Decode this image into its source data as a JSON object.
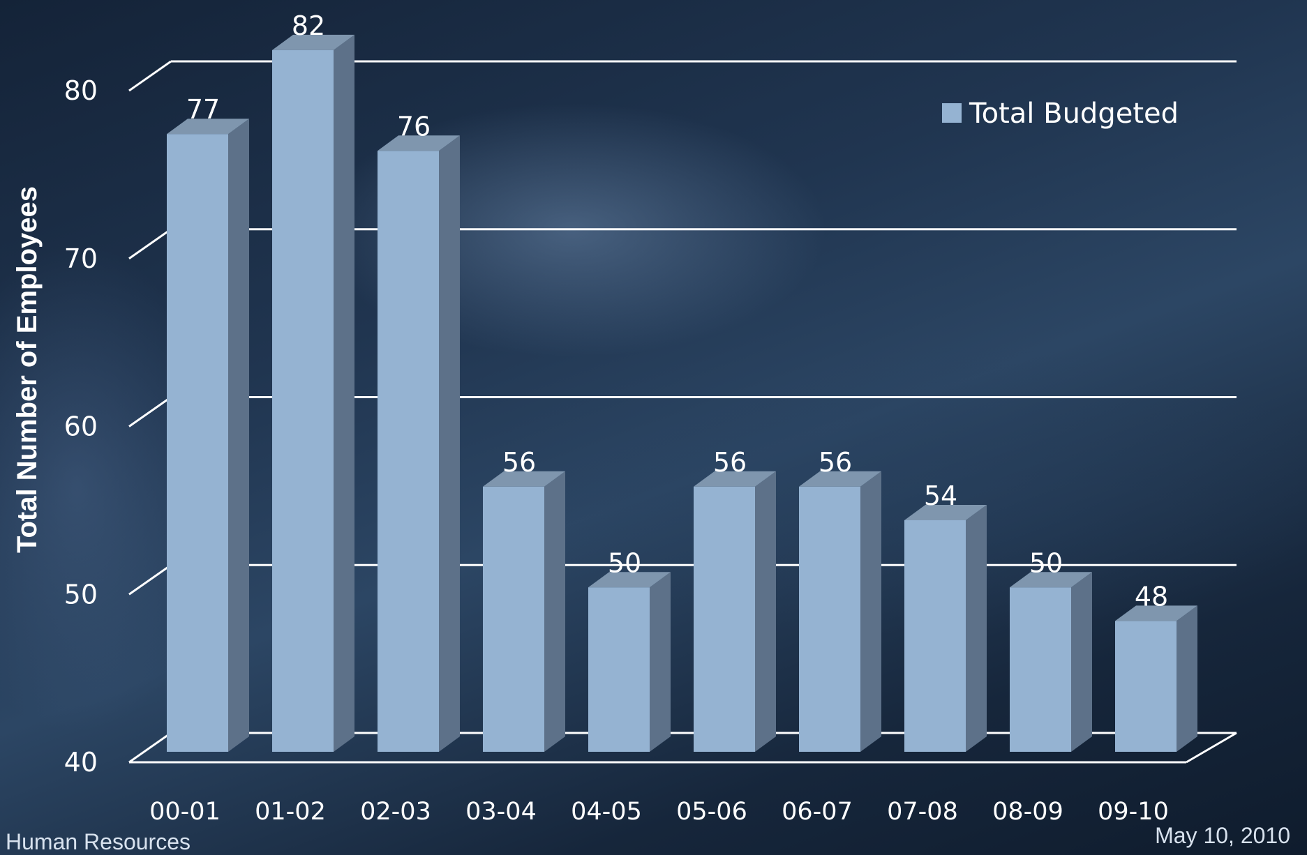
{
  "chart_data": {
    "type": "bar",
    "categories": [
      "00-01",
      "01-02",
      "02-03",
      "03-04",
      "04-05",
      "05-06",
      "06-07",
      "07-08",
      "08-09",
      "09-10"
    ],
    "series": [
      {
        "name": "Total Budgeted",
        "values": [
          77,
          82,
          76,
          56,
          50,
          56,
          56,
          54,
          50,
          48
        ]
      }
    ],
    "ylabel": "Total Number of Employees",
    "ylim": [
      40,
      80
    ],
    "yticks": [
      40,
      50,
      60,
      70,
      80
    ],
    "grid": true,
    "legend": "top-right",
    "colors": {
      "bar_front": "#95b3d2",
      "bar_side": "#5d7189",
      "bar_top": "#7f96ae",
      "gridline": "#ffffff"
    }
  },
  "footer": {
    "left": "Human Resources",
    "right": "May 10, 2010"
  }
}
